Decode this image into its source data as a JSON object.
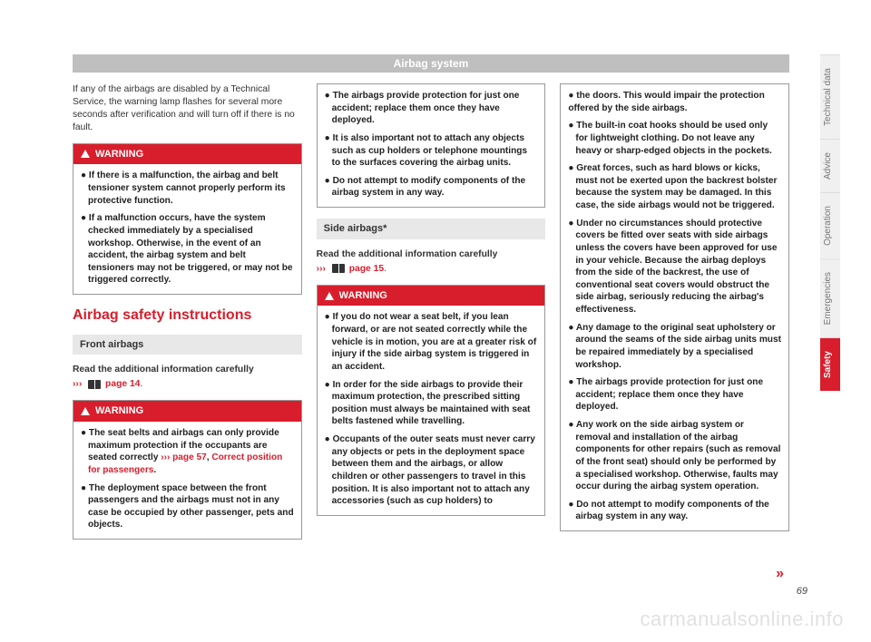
{
  "header": {
    "title": "Airbag system"
  },
  "col1": {
    "intro": "If any of the airbags are disabled by a Technical Service, the warning lamp flashes for several more seconds after verification and will turn off if there is no fault.",
    "warn1": {
      "label": "WARNING",
      "b1": "If there is a malfunction, the airbag and belt tensioner system cannot properly perform its protective function.",
      "b2": "If a malfunction occurs, have the system checked immediately by a specialised workshop. Otherwise, in the event of an accident, the airbag system and belt tensioners may not be triggered, or may not be triggered correctly."
    },
    "section": "Airbag safety instructions",
    "front": "Front airbags",
    "read": "Read the additional information carefully",
    "pageref_prefix": "›››",
    "pageref": "page 14",
    "warn2": {
      "label": "WARNING",
      "b1_pre": "The seat belts and airbags can only provide maximum protection if the occupants are seated correctly ",
      "b1_link1": "››› page 57",
      "b1_mid": ", ",
      "b1_link2": "Correct position for passengers",
      "b1_post": ".",
      "b2": "The deployment space between the front passengers and the airbags must not in any case be occupied by other passenger, pets and objects."
    }
  },
  "col2": {
    "warn3": {
      "b1": "The airbags provide protection for just one accident; replace them once they have deployed.",
      "b2": "It is also important not to attach any objects such as cup holders or telephone mountings to the surfaces covering the airbag units.",
      "b3": "Do not attempt to modify components of the airbag system in any way."
    },
    "side": "Side airbags*",
    "read": "Read the additional information carefully",
    "pageref_prefix": "›››",
    "pageref": "page 15",
    "warn4": {
      "label": "WARNING",
      "b1": "If you do not wear a seat belt, if you lean forward, or are not seated correctly while the vehicle is in motion, you are at a greater risk of injury if the side airbag system is triggered in an accident.",
      "b2": "In order for the side airbags to provide their maximum protection, the prescribed sitting position must always be maintained with seat belts fastened while travelling.",
      "b3": "Occupants of the outer seats must never carry any objects or pets in the deployment space between them and the airbags, or allow children or other passengers to travel in this position. It is also important not to attach any accessories (such as cup holders) to"
    }
  },
  "col3": {
    "warn5": {
      "b1": "the doors. This would impair the protection offered by the side airbags.",
      "b2": "The built-in coat hooks should be used only for lightweight clothing. Do not leave any heavy or sharp-edged objects in the pockets.",
      "b3": "Great forces, such as hard blows or kicks, must not be exerted upon the backrest bolster because the system may be damaged. In this case, the side airbags would not be triggered.",
      "b4": "Under no circumstances should protective covers be fitted over seats with side airbags unless the covers have been approved for use in your vehicle. Because the airbag deploys from the side of the backrest, the use of conventional seat covers would obstruct the side airbag, seriously reducing the airbag's effectiveness.",
      "b5": "Any damage to the original seat upholstery or around the seams of the side airbag units must be repaired immediately by a specialised workshop.",
      "b6": "The airbags provide protection for just one accident; replace them once they have deployed.",
      "b7": "Any work on the side airbag system or removal and installation of the airbag components for other repairs (such as removal of the front seat) should only be performed by a specialised workshop. Otherwise, faults may occur during the airbag system operation.",
      "b8": "Do not attempt to modify components of the airbag system in any way."
    }
  },
  "tabs": {
    "t1": "Technical data",
    "t2": "Advice",
    "t3": "Operation",
    "t4": "Emergencies",
    "t5": "Safety"
  },
  "pagenum": "69",
  "continue": "»",
  "watermark": "carmanualsonline.info"
}
